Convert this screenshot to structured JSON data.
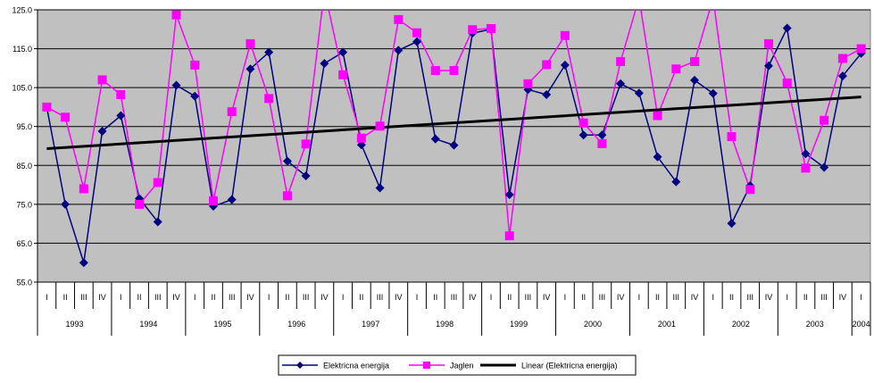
{
  "chart_data": {
    "type": "line",
    "ylim": [
      55,
      125
    ],
    "yticks": [
      "55.0",
      "65.0",
      "75.0",
      "85.0",
      "95.0",
      "105.0",
      "115.0",
      "125.0"
    ],
    "ytick_values": [
      55,
      65,
      75,
      85,
      95,
      105,
      115,
      125
    ],
    "quarters": [
      "I",
      "II",
      "III",
      "IV",
      "I",
      "II",
      "III",
      "IV",
      "I",
      "II",
      "III",
      "IV",
      "I",
      "II",
      "III",
      "IV",
      "I",
      "II",
      "III",
      "IV",
      "I",
      "II",
      "III",
      "IV",
      "I",
      "II",
      "III",
      "IV",
      "I",
      "II",
      "III",
      "IV",
      "I",
      "II",
      "III",
      "IV",
      "I",
      "II",
      "III",
      "IV",
      "I",
      "II",
      "III",
      "IV",
      "I"
    ],
    "years": [
      "1993",
      "1994",
      "1995",
      "1996",
      "1997",
      "1998",
      "1999",
      "2000",
      "2001",
      "2002",
      "2003",
      "2004"
    ],
    "grid": true,
    "plot_background": "#c0c0c0",
    "legend_position": "bottom",
    "series": [
      {
        "name": "Elektricna energija",
        "color": "#000080",
        "marker": "diamond",
        "values": [
          100.0,
          75.0,
          60.0,
          93.8,
          97.8,
          76.5,
          70.5,
          105.6,
          102.8,
          74.5,
          76.2,
          109.8,
          114.1,
          86.1,
          82.3,
          111.2,
          114.1,
          90.3,
          79.2,
          114.6,
          116.8,
          91.8,
          90.2,
          119.0,
          120.0,
          77.5,
          104.5,
          103.2,
          110.8,
          92.8,
          92.8,
          106.0,
          103.6,
          87.2,
          80.8,
          106.9,
          103.5,
          70.1,
          79.8,
          110.6,
          120.3,
          88.0,
          84.5,
          108.0,
          113.8
        ]
      },
      {
        "name": "Jaglen",
        "color": "#ff00ff",
        "marker": "square",
        "values": [
          100.0,
          97.4,
          79.0,
          107.0,
          103.2,
          75.0,
          80.6,
          123.7,
          110.8,
          75.9,
          98.8,
          116.3,
          102.2,
          77.2,
          90.5,
          130.0,
          108.3,
          92.0,
          95.1,
          122.5,
          119.1,
          109.4,
          109.4,
          119.9,
          120.2,
          66.9,
          106.0,
          110.9,
          118.4,
          95.9,
          90.6,
          111.7,
          128.0,
          97.8,
          109.8,
          111.7,
          128.0,
          92.4,
          78.8,
          116.3,
          106.2,
          84.3,
          96.6,
          112.5,
          115.0
        ]
      },
      {
        "name": "Linear (Elektricna energija)",
        "color": "#000000",
        "marker": "none",
        "values": [
          89.3,
          102.6
        ]
      }
    ]
  }
}
